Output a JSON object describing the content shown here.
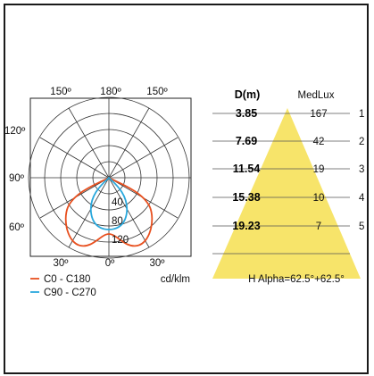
{
  "polar": {
    "top_labels": [
      "150º",
      "180º",
      "150º"
    ],
    "left_labels": [
      "120º",
      "90º",
      "60º"
    ],
    "bottom_labels": [
      "30º",
      "0º",
      "30º"
    ],
    "radial_labels": [
      "40",
      "80",
      "120"
    ],
    "unit": "cd/klm",
    "legend": [
      {
        "label": "C0 - C180",
        "color": "#e8501f"
      },
      {
        "label": "C90 - C270",
        "color": "#2aa8dc"
      }
    ]
  },
  "cone": {
    "header_d": "D(m)",
    "header_lux": "MedLux",
    "fill_color": "#f7e46a",
    "rows": [
      {
        "d": "3.85",
        "lux": "167",
        "h": "1"
      },
      {
        "d": "7.69",
        "lux": "42",
        "h": "2"
      },
      {
        "d": "11.54",
        "lux": "19",
        "h": "3"
      },
      {
        "d": "15.38",
        "lux": "10",
        "h": "4"
      },
      {
        "d": "19.23",
        "lux": "7",
        "h": "5"
      }
    ],
    "alpha_text": "H  Alpha=62.5°+62.5°"
  }
}
